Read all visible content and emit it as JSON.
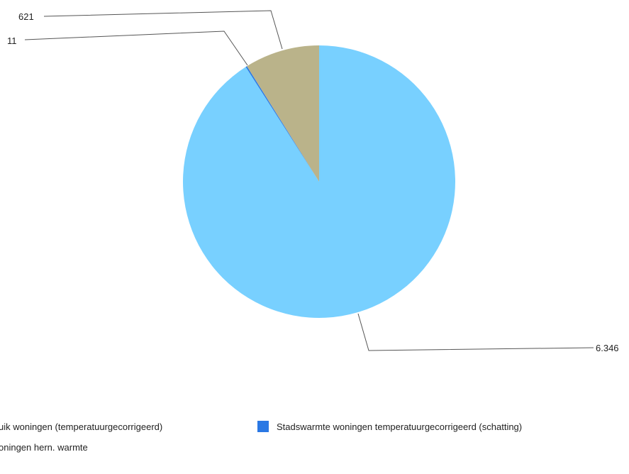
{
  "chart_data": {
    "type": "pie",
    "slices": [
      {
        "label": "Gasverbruik woningen (temperatuurgecorrigeerd)",
        "legend_text": "uik woningen (temperatuurgecorrigeerd)",
        "value": 6346,
        "value_label": "6.346",
        "color": "#78d0ff"
      },
      {
        "label": "Stadswarmte woningen temperatuurgecorrigeerd (schatting)",
        "legend_text": "Stadswarmte woningen temperatuurgecorrigeerd (schatting)",
        "value": 11,
        "value_label": "11",
        "color": "#2a78e4"
      },
      {
        "label": "Woningen hern. warmte",
        "legend_text": "oningen hern. warmte",
        "value": 621,
        "value_label": "621",
        "color": "#bab38a"
      }
    ],
    "start_angle_deg": 0,
    "direction": "clockwise",
    "legend_position": "bottom"
  }
}
